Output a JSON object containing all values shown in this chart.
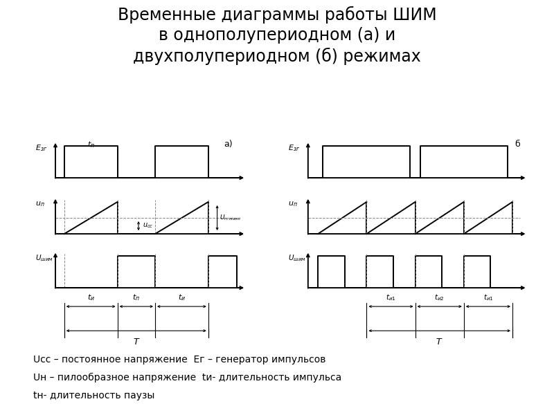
{
  "title_line1": "Временные диаграммы работы ШИМ",
  "title_line2": "в однополупериодном (а) и",
  "title_line3": "двухполупериодном (б) режимах",
  "title_fontsize": 17,
  "legend_fontsize": 10,
  "bg_color": "#ffffff",
  "line_color": "#000000",
  "dashed_color": "#888888",
  "legend_lines": [
    "Ucc – постоянное напряжение  Ег – генератор импульсов",
    "Uн – пилообразное напряжение  tи- длительность импульса",
    "tн- длительность паузы"
  ]
}
